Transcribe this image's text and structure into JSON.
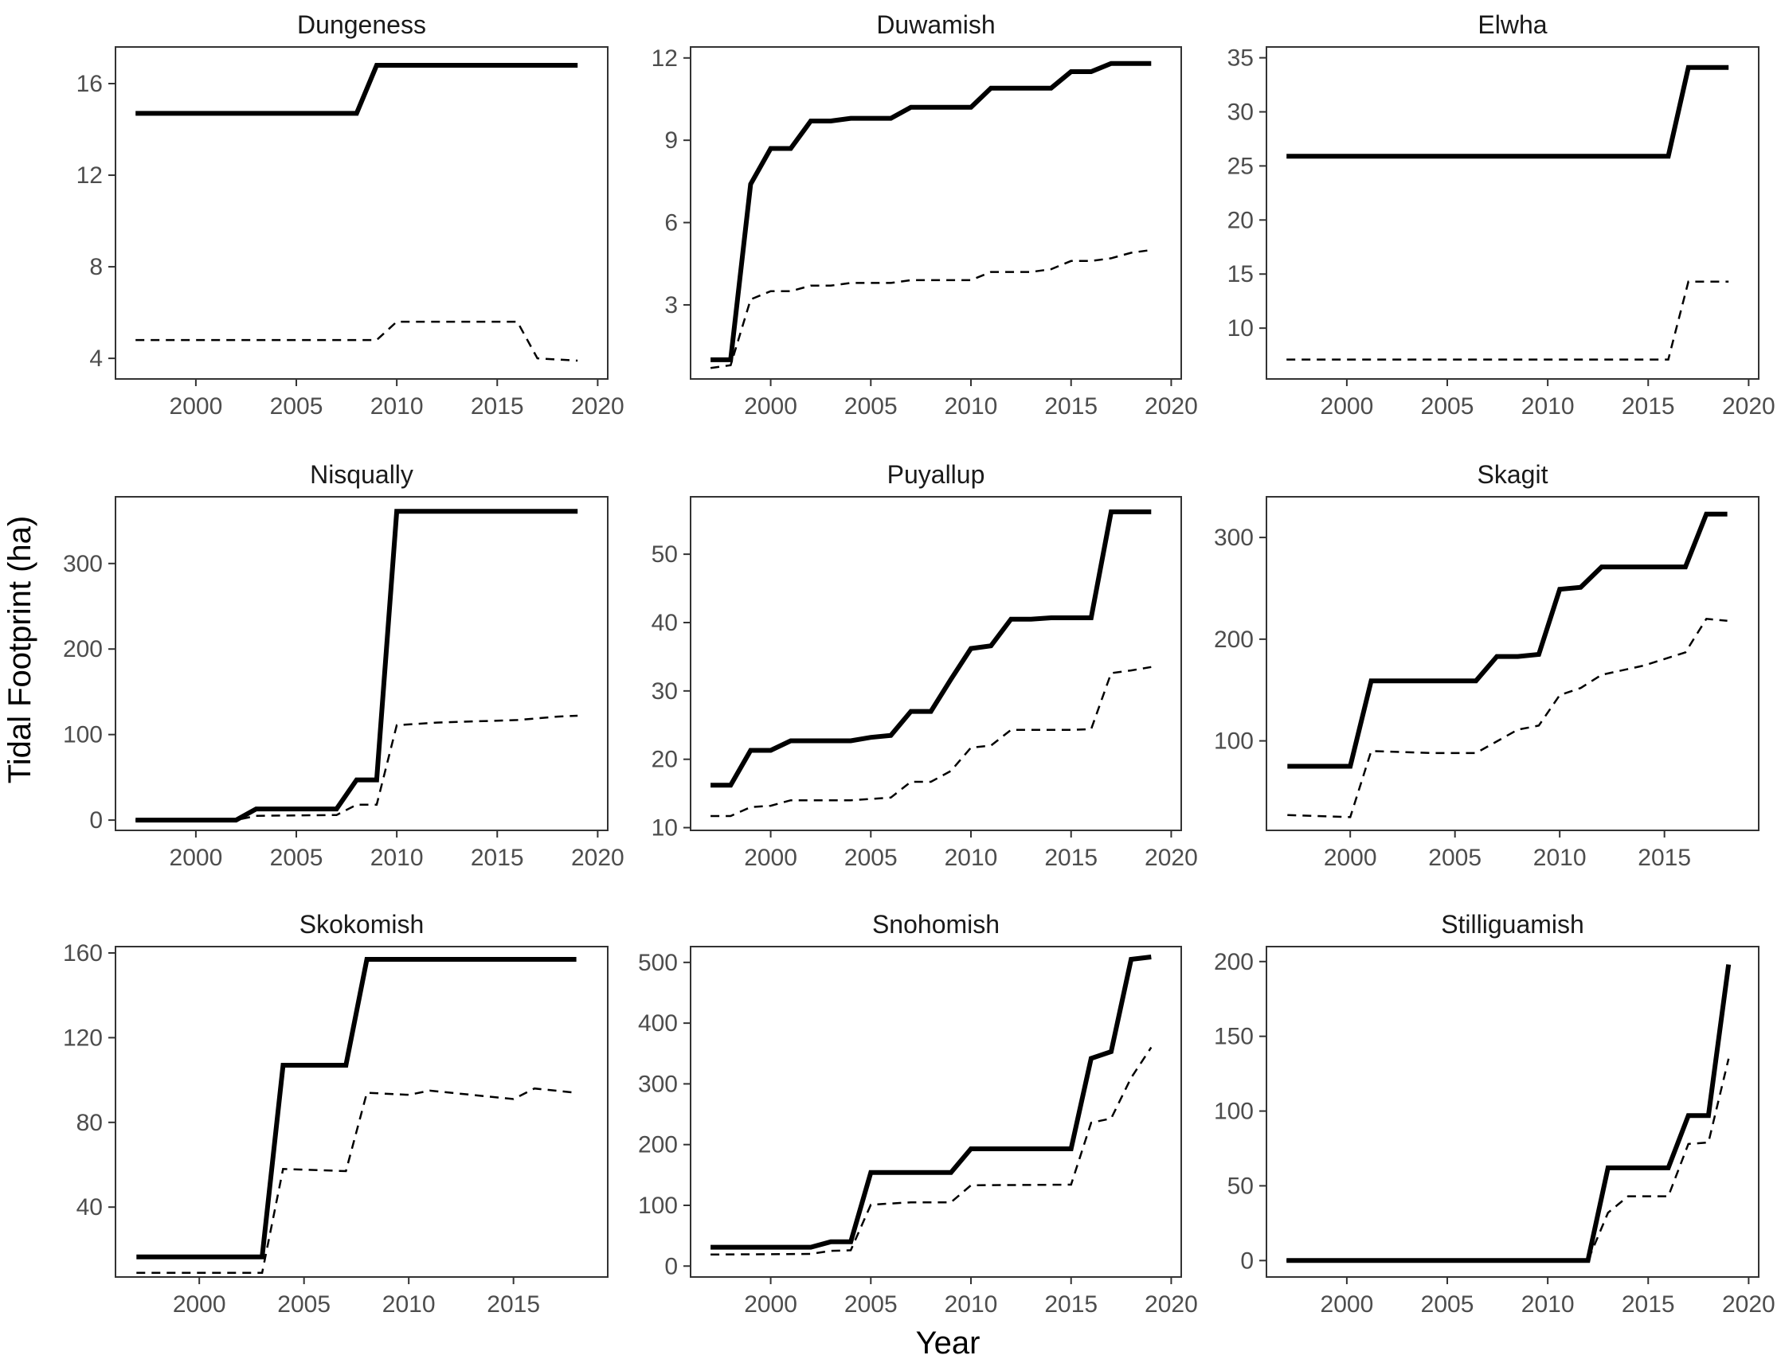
{
  "chart_data": {
    "type": "line",
    "layout": "3x3 facet grid",
    "xlabel": "Year",
    "ylabel": "Tidal Footprint (ha)",
    "legend": "none",
    "grid": false,
    "series_styles": {
      "solid": "#000000",
      "dashed": "#000000"
    },
    "panels": [
      {
        "name": "Dungeness",
        "xlim": [
          1996,
          2020.5
        ],
        "ylim": [
          3.1,
          17.6
        ],
        "xticks": [
          2000,
          2005,
          2010,
          2015,
          2020
        ],
        "yticks": [
          4,
          8,
          12,
          16
        ],
        "solid": {
          "x": [
            1997,
            2008,
            2009,
            2019
          ],
          "y": [
            14.7,
            14.7,
            16.8,
            16.8
          ]
        },
        "dashed": {
          "x": [
            1997,
            2009,
            2010,
            2016,
            2017,
            2019
          ],
          "y": [
            4.8,
            4.8,
            5.6,
            5.6,
            4.0,
            3.9
          ]
        }
      },
      {
        "name": "Duwamish",
        "xlim": [
          1996,
          2020.5
        ],
        "ylim": [
          0.3,
          12.4
        ],
        "xticks": [
          2000,
          2005,
          2010,
          2015,
          2020
        ],
        "yticks": [
          3,
          6,
          9,
          12
        ],
        "solid": {
          "x": [
            1997,
            1998,
            1999,
            2000,
            2001,
            2002,
            2003,
            2004,
            2005,
            2006,
            2007,
            2008,
            2009,
            2010,
            2011,
            2012,
            2013,
            2014,
            2015,
            2016,
            2017,
            2018,
            2019
          ],
          "y": [
            1.0,
            1.0,
            7.4,
            8.7,
            8.7,
            9.7,
            9.7,
            9.8,
            9.8,
            9.8,
            10.2,
            10.2,
            10.2,
            10.2,
            10.9,
            10.9,
            10.9,
            10.9,
            11.5,
            11.5,
            11.8,
            11.8,
            11.8
          ]
        },
        "dashed": {
          "x": [
            1997,
            1998,
            1999,
            2000,
            2001,
            2002,
            2003,
            2004,
            2005,
            2006,
            2007,
            2008,
            2009,
            2010,
            2011,
            2012,
            2013,
            2014,
            2015,
            2016,
            2017,
            2018,
            2019
          ],
          "y": [
            0.7,
            0.8,
            3.2,
            3.5,
            3.5,
            3.7,
            3.7,
            3.8,
            3.8,
            3.8,
            3.9,
            3.9,
            3.9,
            3.9,
            4.2,
            4.2,
            4.2,
            4.3,
            4.6,
            4.6,
            4.7,
            4.9,
            5.0
          ]
        }
      },
      {
        "name": "Elwha",
        "xlim": [
          1996,
          2020.5
        ],
        "ylim": [
          5.3,
          36.0
        ],
        "xticks": [
          2000,
          2005,
          2010,
          2015,
          2020
        ],
        "yticks": [
          10,
          15,
          20,
          25,
          30,
          35
        ],
        "solid": {
          "x": [
            1997,
            2016,
            2017,
            2019
          ],
          "y": [
            25.9,
            25.9,
            34.1,
            34.1
          ]
        },
        "dashed": {
          "x": [
            1997,
            2016,
            2017,
            2019
          ],
          "y": [
            7.1,
            7.1,
            14.3,
            14.3
          ]
        }
      },
      {
        "name": "Nisqually",
        "xlim": [
          1996,
          2020.5
        ],
        "ylim": [
          -12,
          378
        ],
        "xticks": [
          2000,
          2005,
          2010,
          2015,
          2020
        ],
        "yticks": [
          0,
          100,
          200,
          300
        ],
        "solid": {
          "x": [
            1997,
            2002,
            2003,
            2007,
            2008,
            2009,
            2010,
            2019
          ],
          "y": [
            0,
            0,
            13,
            13,
            47,
            47,
            361,
            361
          ]
        },
        "dashed": {
          "x": [
            1997,
            2002,
            2003,
            2007,
            2008,
            2009,
            2010,
            2012,
            2016,
            2018,
            2019
          ],
          "y": [
            0,
            0,
            5,
            6,
            18,
            18,
            111,
            114,
            117,
            121,
            122
          ]
        }
      },
      {
        "name": "Puyallup",
        "xlim": [
          1996,
          2020.5
        ],
        "ylim": [
          9.6,
          58.4
        ],
        "xticks": [
          2000,
          2005,
          2010,
          2015,
          2020
        ],
        "yticks": [
          10,
          20,
          30,
          40,
          50
        ],
        "solid": {
          "x": [
            1997,
            1998,
            1999,
            2000,
            2001,
            2002,
            2003,
            2004,
            2005,
            2006,
            2007,
            2008,
            2009,
            2010,
            2011,
            2012,
            2013,
            2014,
            2015,
            2016,
            2017,
            2018,
            2019
          ],
          "y": [
            16.2,
            16.2,
            21.3,
            21.3,
            22.7,
            22.7,
            22.7,
            22.7,
            23.2,
            23.5,
            27.0,
            27.0,
            31.7,
            36.2,
            36.6,
            40.5,
            40.5,
            40.7,
            40.7,
            40.7,
            56.2,
            56.2,
            56.2
          ]
        },
        "dashed": {
          "x": [
            1997,
            1998,
            1999,
            2000,
            2001,
            2002,
            2003,
            2004,
            2005,
            2006,
            2007,
            2008,
            2009,
            2010,
            2011,
            2012,
            2013,
            2014,
            2015,
            2016,
            2017,
            2018,
            2019
          ],
          "y": [
            11.7,
            11.7,
            13.0,
            13.2,
            14.0,
            14.0,
            14.0,
            14.0,
            14.2,
            14.4,
            16.7,
            16.7,
            18.3,
            21.7,
            22.0,
            24.3,
            24.3,
            24.3,
            24.3,
            24.4,
            32.6,
            33.0,
            33.5
          ]
        }
      },
      {
        "name": "Skagit",
        "xlim": [
          1996,
          2019.5
        ],
        "ylim": [
          12,
          340
        ],
        "xticks": [
          2000,
          2005,
          2010,
          2015
        ],
        "yticks": [
          100,
          200,
          300
        ],
        "solid": {
          "x": [
            1997,
            2000,
            2001,
            2006,
            2007,
            2008,
            2009,
            2010,
            2011,
            2012,
            2016,
            2017,
            2018
          ],
          "y": [
            75,
            75,
            159,
            159,
            183,
            183,
            185,
            249,
            251,
            271,
            271,
            323,
            323
          ]
        },
        "dashed": {
          "x": [
            1997,
            2000,
            2001,
            2004,
            2006,
            2008,
            2009,
            2010,
            2011,
            2012,
            2014,
            2016,
            2017,
            2018
          ],
          "y": [
            27,
            25,
            90,
            88,
            88,
            111,
            115,
            145,
            152,
            165,
            174,
            187,
            220,
            218
          ]
        }
      },
      {
        "name": "Skokomish",
        "xlim": [
          1996,
          2019.5
        ],
        "ylim": [
          7,
          163
        ],
        "xticks": [
          2000,
          2005,
          2010,
          2015
        ],
        "yticks": [
          40,
          80,
          120,
          160
        ],
        "solid": {
          "x": [
            1997,
            2003,
            2004,
            2007,
            2008,
            2018
          ],
          "y": [
            16.5,
            16.5,
            107,
            107,
            157,
            157
          ]
        },
        "dashed": {
          "x": [
            1997,
            2003,
            2004,
            2007,
            2008,
            2010,
            2011,
            2015,
            2016,
            2018
          ],
          "y": [
            9,
            9,
            58,
            57,
            94,
            93,
            95,
            91,
            96,
            94
          ]
        }
      },
      {
        "name": "Snohomish",
        "xlim": [
          1996,
          2020.5
        ],
        "ylim": [
          -18,
          526
        ],
        "xticks": [
          2000,
          2005,
          2010,
          2015,
          2020
        ],
        "yticks": [
          0,
          100,
          200,
          300,
          400,
          500
        ],
        "solid": {
          "x": [
            1997,
            2002,
            2003,
            2004,
            2005,
            2009,
            2010,
            2015,
            2016,
            2017,
            2018,
            2019
          ],
          "y": [
            31,
            31,
            40,
            40,
            154,
            154,
            193,
            193,
            342,
            353,
            505,
            509
          ]
        },
        "dashed": {
          "x": [
            1997,
            2002,
            2003,
            2004,
            2005,
            2007,
            2009,
            2010,
            2015,
            2016,
            2017,
            2018,
            2019
          ],
          "y": [
            19,
            20,
            25,
            26,
            101,
            105,
            105,
            133,
            134,
            236,
            243,
            310,
            360
          ]
        }
      },
      {
        "name": "Stilliguamish",
        "xlim": [
          1996,
          2020.5
        ],
        "ylim": [
          -11,
          210
        ],
        "xticks": [
          2000,
          2005,
          2010,
          2015,
          2020
        ],
        "yticks": [
          0,
          50,
          100,
          150,
          200
        ],
        "solid": {
          "x": [
            1997,
            2012,
            2013,
            2016,
            2017,
            2018,
            2019
          ],
          "y": [
            0,
            0,
            62,
            62,
            97,
            97,
            198
          ]
        },
        "dashed": {
          "x": [
            1997,
            2012,
            2013,
            2014,
            2016,
            2017,
            2018,
            2019
          ],
          "y": [
            0,
            0,
            32,
            43,
            43,
            78,
            79,
            135
          ]
        }
      }
    ]
  }
}
